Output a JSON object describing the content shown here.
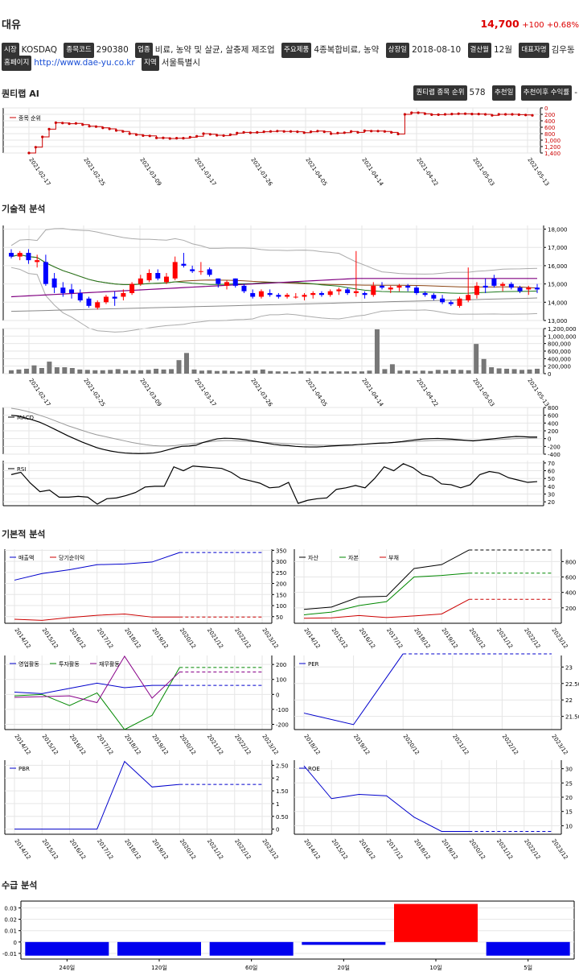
{
  "header": {
    "name": "대유",
    "price": "14,700",
    "change": "+100 +0.68%",
    "up_color": "#dd0000"
  },
  "info": {
    "market_tag": "시장",
    "market": "KOSDAQ",
    "code_tag": "종목코드",
    "code": "290380",
    "industry_tag": "업종",
    "industry": "비료, 농약 및 살균, 살충제 제조업",
    "product_tag": "주요제품",
    "product": "4종복합비료, 농약",
    "listed_tag": "상장일",
    "listed": "2018-08-10",
    "fiscal_tag": "결산월",
    "fiscal": "12월",
    "ceo_tag": "대표자명",
    "ceo": "김우동",
    "homepage_tag": "홈페이지",
    "homepage": "http://www.dae-yu.co.kr",
    "region_tag": "지역",
    "region": "서울특별시"
  },
  "quantum": {
    "title": "퀀티랩 AI",
    "rank_tag": "퀀티랩 종목 순위",
    "rank": "578",
    "rec_tag": "추천일",
    "ret_tag": "추천이후 수익률",
    "ret": "-"
  },
  "sections": {
    "technical": "기술적 분석",
    "fundamental": "기본적 분석",
    "supply": "수급 분석"
  },
  "dates": [
    "2021-02-17",
    "2021-02-25",
    "2021-03-09",
    "2021-03-17",
    "2021-03-26",
    "2021-04-05",
    "2021-04-14",
    "2021-04-22",
    "2021-05-03",
    "2021-05-13"
  ],
  "chart_data": [
    {
      "type": "line",
      "name": "rank",
      "legend": [
        "종목 순위"
      ],
      "yticks": [
        "0",
        "200",
        "400",
        "600",
        "800",
        "1,000",
        "1,200",
        "1,400"
      ],
      "ylim": [
        0,
        1400
      ],
      "y_inverted": true,
      "values": [
        1400,
        1220,
        900,
        660,
        460,
        470,
        490,
        480,
        520,
        570,
        580,
        620,
        650,
        700,
        730,
        800,
        830,
        860,
        870,
        930,
        930,
        950,
        940,
        940,
        910,
        880,
        800,
        820,
        850,
        860,
        830,
        780,
        760,
        770,
        760,
        740,
        730,
        720,
        730,
        730,
        740,
        770,
        740,
        720,
        740,
        800,
        780,
        770,
        730,
        760,
        710,
        720,
        720,
        730,
        760,
        810,
        200,
        150,
        150,
        180,
        210,
        210,
        200,
        190,
        180,
        180,
        190,
        190,
        200,
        230,
        200,
        200,
        200,
        210,
        220,
        230
      ]
    },
    {
      "type": "candlestick",
      "name": "price",
      "yticks": [
        "13,000",
        "14,000",
        "15,000",
        "16,000",
        "17,000",
        "18,000"
      ],
      "ylim": [
        13000,
        18200
      ],
      "ohlc": [
        [
          16700,
          16900,
          16400,
          16500
        ],
        [
          16500,
          16800,
          16300,
          16700
        ],
        [
          16700,
          16900,
          16100,
          16300
        ],
        [
          16200,
          16600,
          15900,
          16300
        ],
        [
          16200,
          16600,
          14900,
          15000
        ],
        [
          15300,
          15600,
          14500,
          14800
        ],
        [
          14800,
          15100,
          14300,
          14500
        ],
        [
          14700,
          15000,
          14200,
          14500
        ],
        [
          14500,
          14700,
          14000,
          14100
        ],
        [
          14200,
          14300,
          13700,
          13800
        ],
        [
          13700,
          14100,
          13600,
          14000
        ],
        [
          14000,
          14400,
          13900,
          14300
        ],
        [
          14300,
          14600,
          13800,
          14200
        ],
        [
          14300,
          14700,
          14100,
          14500
        ],
        [
          14500,
          15100,
          14400,
          15000
        ],
        [
          15000,
          15500,
          14900,
          15300
        ],
        [
          15200,
          15800,
          15100,
          15600
        ],
        [
          15600,
          15800,
          15200,
          15300
        ],
        [
          15100,
          15600,
          15000,
          15400
        ],
        [
          15300,
          16500,
          15200,
          16200
        ],
        [
          16100,
          16700,
          15900,
          16000
        ],
        [
          15800,
          16000,
          15600,
          15700
        ],
        [
          15700,
          16200,
          15500,
          15700
        ],
        [
          15800,
          15900,
          15400,
          15500
        ],
        [
          15300,
          15300,
          14800,
          15000
        ],
        [
          14900,
          15200,
          14700,
          15100
        ],
        [
          15300,
          15300,
          14800,
          14900
        ],
        [
          14900,
          15000,
          14500,
          14600
        ],
        [
          14500,
          14700,
          14200,
          14300
        ],
        [
          14300,
          14700,
          14200,
          14600
        ],
        [
          14500,
          14700,
          14300,
          14400
        ],
        [
          14400,
          14500,
          14200,
          14300
        ],
        [
          14300,
          14500,
          14200,
          14400
        ],
        [
          14300,
          14500,
          14200,
          14300
        ],
        [
          14300,
          14500,
          14100,
          14400
        ],
        [
          14400,
          14600,
          14200,
          14500
        ],
        [
          14500,
          14600,
          14300,
          14400
        ],
        [
          14400,
          14700,
          14300,
          14600
        ],
        [
          14600,
          14800,
          14400,
          14700
        ],
        [
          14700,
          14800,
          14400,
          14500
        ],
        [
          14500,
          16800,
          14300,
          14600
        ],
        [
          14500,
          14600,
          14200,
          14400
        ],
        [
          14400,
          15100,
          14300,
          14900
        ],
        [
          14900,
          15100,
          14700,
          14800
        ],
        [
          14700,
          14900,
          14500,
          14800
        ],
        [
          14800,
          15000,
          14600,
          14900
        ],
        [
          14900,
          15000,
          14600,
          14800
        ],
        [
          14800,
          14900,
          14400,
          14500
        ],
        [
          14500,
          14600,
          14300,
          14400
        ],
        [
          14400,
          14500,
          14100,
          14200
        ],
        [
          14200,
          14400,
          13900,
          14000
        ],
        [
          14000,
          14100,
          13800,
          13900
        ],
        [
          13800,
          14300,
          13700,
          14200
        ],
        [
          14100,
          15900,
          14000,
          14400
        ],
        [
          14400,
          15100,
          14200,
          14900
        ],
        [
          14900,
          15300,
          14500,
          14800
        ],
        [
          15300,
          15500,
          14800,
          14900
        ],
        [
          14900,
          15100,
          14600,
          15000
        ],
        [
          15000,
          15100,
          14700,
          14800
        ],
        [
          14800,
          14900,
          14500,
          14600
        ],
        [
          14700,
          14900,
          14400,
          14800
        ],
        [
          14800,
          15000,
          14500,
          14700
        ]
      ],
      "volume": [
        90000,
        110000,
        130000,
        220000,
        150000,
        320000,
        170000,
        170000,
        150000,
        110000,
        100000,
        90000,
        90000,
        100000,
        120000,
        90000,
        90000,
        90000,
        100000,
        130000,
        110000,
        120000,
        360000,
        550000,
        110000,
        80000,
        90000,
        70000,
        80000,
        70000,
        60000,
        80000,
        90000,
        110000,
        70000,
        60000,
        60000,
        50000,
        70000,
        60000,
        70000,
        60000,
        60000,
        60000,
        60000,
        60000,
        60000,
        80000,
        1180000,
        120000,
        250000,
        80000,
        90000,
        70000,
        80000,
        70000,
        100000,
        90000,
        110000,
        100000,
        90000,
        790000,
        390000,
        170000,
        140000,
        130000,
        120000,
        100000,
        110000,
        130000
      ],
      "vol_yticks": [
        "0",
        "200,000",
        "400,000",
        "600,000",
        "800,000",
        "1,000,000",
        "1,200,000"
      ],
      "vol_ylim": [
        0,
        1200000
      ]
    },
    {
      "type": "line",
      "name": "macd",
      "legend": [
        "MACD"
      ],
      "yticks": [
        "-400",
        "-200",
        "0",
        "200",
        "400",
        "600",
        "800"
      ],
      "ylim": [
        -400,
        800
      ],
      "macd": [
        600,
        580,
        530,
        480,
        420,
        340,
        250,
        160,
        70,
        -10,
        -90,
        -160,
        -230,
        -280,
        -320,
        -350,
        -370,
        -380,
        -385,
        -380,
        -370,
        -340,
        -290,
        -240,
        -200,
        -190,
        -170,
        -100,
        -50,
        -5,
        10,
        5,
        -10,
        -30,
        -60,
        -90,
        -120,
        -150,
        -170,
        -180,
        -200,
        -210,
        -215,
        -215,
        -205,
        -190,
        -180,
        -170,
        -165,
        -150,
        -140,
        -125,
        -115,
        -110,
        -95,
        -75,
        -50,
        -30,
        -10,
        0,
        5,
        -5,
        -15,
        -30,
        -45,
        -60,
        -40,
        -20,
        0,
        20,
        40,
        55,
        50,
        40,
        40
      ],
      "signal": [
        780,
        750,
        710,
        660,
        600,
        540,
        470,
        400,
        330,
        270,
        210,
        150,
        100,
        60,
        20,
        -20,
        -60,
        -100,
        -130,
        -160,
        -180,
        -190,
        -190,
        -180,
        -160,
        -140,
        -120,
        -100,
        -80,
        -60,
        -50,
        -50,
        -60,
        -70,
        -80,
        -90,
        -100,
        -110,
        -120,
        -130,
        -140,
        -150,
        -160,
        -170,
        -170,
        -170,
        -170,
        -165,
        -160,
        -150,
        -140,
        -130,
        -120,
        -110,
        -100,
        -90,
        -80,
        -70,
        -60,
        -50,
        -45,
        -45,
        -45,
        -45,
        -45,
        -45,
        -40,
        -35,
        -30,
        -20,
        -10,
        0,
        5,
        10,
        15
      ]
    },
    {
      "type": "line",
      "name": "rsi",
      "legend": [
        "RSI"
      ],
      "yticks": [
        "20",
        "30",
        "40",
        "50",
        "60",
        "70"
      ],
      "ylim": [
        15,
        73
      ],
      "values": [
        55,
        58,
        44,
        33,
        35,
        26,
        26,
        27,
        26,
        17,
        24,
        25,
        28,
        32,
        39,
        40,
        40,
        65,
        60,
        66,
        65,
        64,
        63,
        58,
        50,
        47,
        44,
        38,
        39,
        45,
        18,
        22,
        24,
        25,
        36,
        38,
        41,
        38,
        50,
        65,
        60,
        69,
        64,
        55,
        52,
        43,
        42,
        38,
        42,
        55,
        59,
        57,
        51,
        48,
        45,
        46
      ]
    },
    {
      "type": "line",
      "name": "revenue-income",
      "legend": [
        "매출액",
        "당기순이익"
      ],
      "x": [
        "2014/12",
        "2015/12",
        "2016/12",
        "2017/12",
        "2018/12",
        "2019/12",
        "2020/12",
        "2021/12",
        "2022/12",
        "2023/12"
      ],
      "yticks": [
        "50",
        "100",
        "150",
        "200",
        "250",
        "300",
        "350"
      ],
      "ylim": [
        20,
        355
      ],
      "series": [
        {
          "name": "매출액",
          "values": [
            215,
            245,
            262,
            285,
            288,
            297,
            340,
            340,
            340,
            340
          ],
          "color": "#0000cc"
        },
        {
          "name": "당기순이익",
          "values": [
            38,
            33,
            46,
            56,
            62,
            48,
            48,
            48,
            48,
            48
          ],
          "color": "#cc0000"
        }
      ],
      "forecast_from": 6
    },
    {
      "type": "line",
      "name": "asset-capital-debt",
      "legend": [
        "자산",
        "자본",
        "부채"
      ],
      "x": [
        "2014/12",
        "2015/12",
        "2016/12",
        "2017/12",
        "2018/12",
        "2019/12",
        "2020/12",
        "2021/12",
        "2022/12",
        "2023/12"
      ],
      "yticks": [
        "200",
        "400",
        "600",
        "800"
      ],
      "ylim": [
        0,
        960
      ],
      "series": [
        {
          "name": "자산",
          "values": [
            180,
            210,
            340,
            350,
            710,
            760,
            950,
            950,
            950,
            950
          ],
          "color": "#000000"
        },
        {
          "name": "자본",
          "values": [
            110,
            145,
            230,
            280,
            600,
            620,
            650,
            650,
            650,
            650
          ],
          "color": "#008800"
        },
        {
          "name": "부채",
          "values": [
            65,
            70,
            100,
            75,
            95,
            120,
            310,
            310,
            310,
            310
          ],
          "color": "#cc0000"
        }
      ],
      "forecast_from": 6
    },
    {
      "type": "line",
      "name": "cashflow",
      "legend": [
        "영업활동",
        "투자활동",
        "재무활동"
      ],
      "x": [
        "2014/12",
        "2015/12",
        "2016/12",
        "2017/12",
        "2018/12",
        "2019/12",
        "2020/12",
        "2021/12",
        "2022/12",
        "2023/12"
      ],
      "yticks": [
        "-200",
        "-100",
        "0",
        "100",
        "200"
      ],
      "ylim": [
        -235,
        260
      ],
      "series": [
        {
          "name": "영업활동",
          "values": [
            15,
            5,
            40,
            75,
            45,
            60,
            60,
            60,
            60,
            60
          ],
          "color": "#0000cc"
        },
        {
          "name": "투자활동",
          "values": [
            -10,
            0,
            -75,
            10,
            -235,
            -140,
            180,
            180,
            180,
            180
          ],
          "color": "#008800"
        },
        {
          "name": "재무활동",
          "values": [
            -20,
            -15,
            -10,
            -55,
            255,
            -25,
            150,
            150,
            150,
            150
          ],
          "color": "#880088"
        }
      ],
      "forecast_from": 6
    },
    {
      "type": "line",
      "name": "per",
      "legend": [
        "PER"
      ],
      "x": [
        "2018/12",
        "2019/12",
        "2020/12",
        "2021/12",
        "2022/12",
        "2023/12"
      ],
      "yticks": [
        "21.50",
        "22",
        "22.50",
        "23"
      ],
      "ylim": [
        21.1,
        23.35
      ],
      "series": [
        {
          "name": "PER",
          "values": [
            21.6,
            21.25,
            23.4,
            23.4,
            23.4,
            23.4
          ],
          "color": "#0000cc"
        }
      ],
      "forecast_from": 2
    },
    {
      "type": "line",
      "name": "pbr",
      "legend": [
        "PBR"
      ],
      "x": [
        "2014/12",
        "2015/12",
        "2016/12",
        "2017/12",
        "2018/12",
        "2019/12",
        "2020/12",
        "2021/12",
        "2022/12",
        "2023/12"
      ],
      "yticks": [
        "0",
        "0.50",
        "1",
        "1.50",
        "2",
        "2.50"
      ],
      "ylim": [
        -0.2,
        2.7
      ],
      "series": [
        {
          "name": "PBR",
          "values": [
            0,
            0,
            0,
            0,
            2.65,
            1.65,
            1.75,
            1.75,
            1.75,
            1.75
          ],
          "color": "#0000cc"
        }
      ],
      "forecast_from": 6
    },
    {
      "type": "line",
      "name": "roe",
      "legend": [
        "ROE"
      ],
      "x": [
        "2014/12",
        "2015/12",
        "2016/12",
        "2017/12",
        "2018/12",
        "2019/12",
        "2020/12",
        "2021/12",
        "2022/12",
        "2023/12"
      ],
      "yticks": [
        "10",
        "15",
        "20",
        "25",
        "30"
      ],
      "ylim": [
        7,
        33
      ],
      "series": [
        {
          "name": "ROE",
          "values": [
            31,
            19.5,
            21,
            20.5,
            13,
            8,
            8,
            8,
            8,
            8
          ],
          "color": "#0000cc"
        }
      ],
      "forecast_from": 6
    },
    {
      "type": "bar",
      "name": "supply",
      "categories": [
        "240일",
        "120일",
        "60일",
        "20일",
        "10일",
        "5일"
      ],
      "values": [
        -0.012,
        -0.012,
        -0.012,
        -0.0025,
        0.0335,
        -0.012
      ],
      "yticks": [
        "-0.01",
        "0",
        "0.01",
        "0.02",
        "0.03"
      ],
      "ylim": [
        -0.015,
        0.036
      ]
    }
  ]
}
